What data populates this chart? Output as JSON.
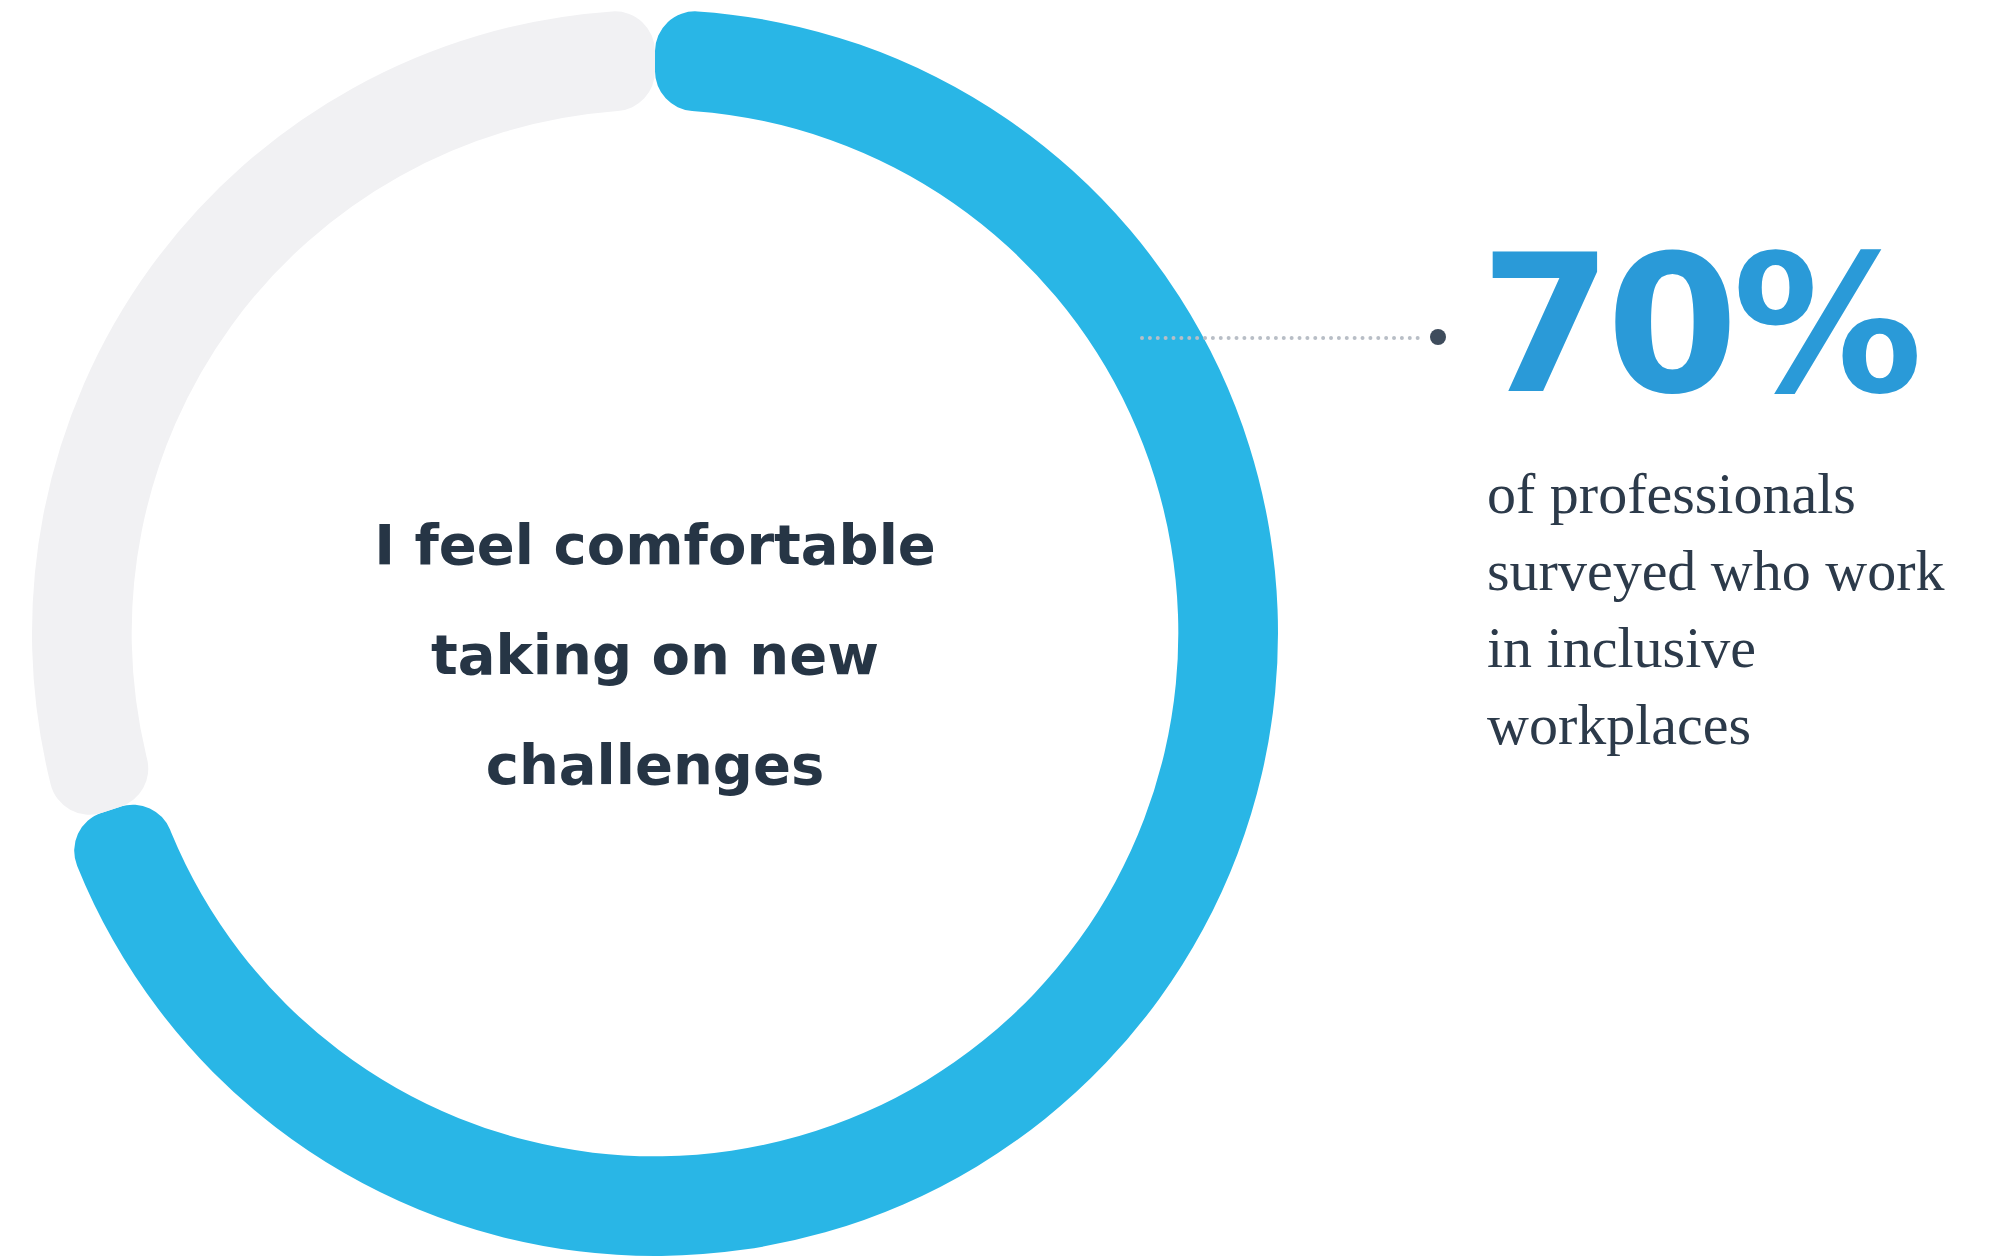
{
  "chart_data": {
    "type": "donut",
    "title": "I feel comfortable taking on new challenges",
    "categories": [
      null,
      null
    ],
    "values": [
      70,
      30
    ],
    "colors": [
      "#29b6e6",
      "#f1f1f3"
    ],
    "value_labels": [
      "70%",
      null
    ],
    "annotations": [
      "of professionals surveyed who work in inclusive workplaces"
    ],
    "legend": false
  }
}
